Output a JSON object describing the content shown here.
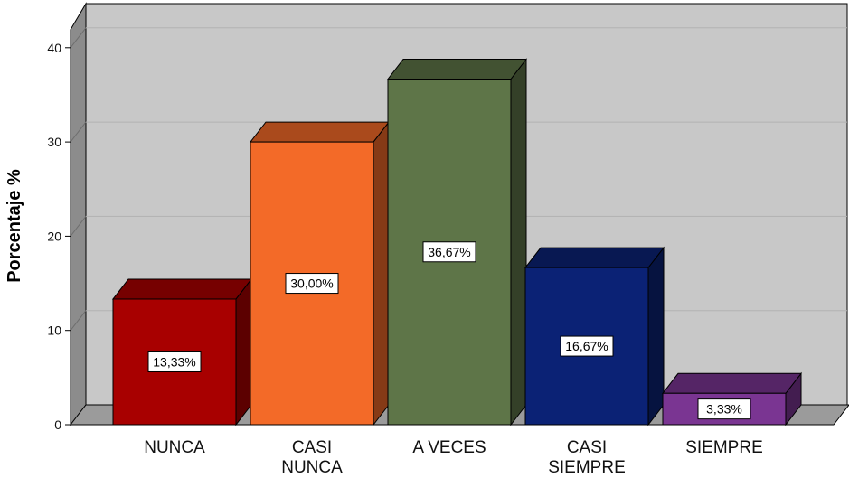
{
  "chart_data": {
    "type": "bar",
    "categories": [
      "NUNCA",
      "CASI NUNCA",
      "A VECES",
      "CASI SIEMPRE",
      "SIEMPRE"
    ],
    "category_lines": [
      [
        "NUNCA"
      ],
      [
        "CASI",
        "NUNCA"
      ],
      [
        "A VECES"
      ],
      [
        "CASI",
        "SIEMPRE"
      ],
      [
        "SIEMPRE"
      ]
    ],
    "values": [
      13.33,
      30.0,
      36.67,
      16.67,
      3.33
    ],
    "data_labels": [
      "13,33%",
      "30,00%",
      "36,67%",
      "16,67%",
      "3,33%"
    ],
    "colors": [
      "#a80000",
      "#f36a28",
      "#5e7548",
      "#0b2275",
      "#7a3592"
    ],
    "xlabel": "",
    "ylabel": "Porcentaje %",
    "ylim": [
      0,
      40
    ],
    "yticks": [
      0,
      10,
      20,
      30,
      40
    ],
    "grid": true,
    "style": "3d",
    "wall_color": "#c8c8c8",
    "floor_color": "#9b9b9b"
  }
}
